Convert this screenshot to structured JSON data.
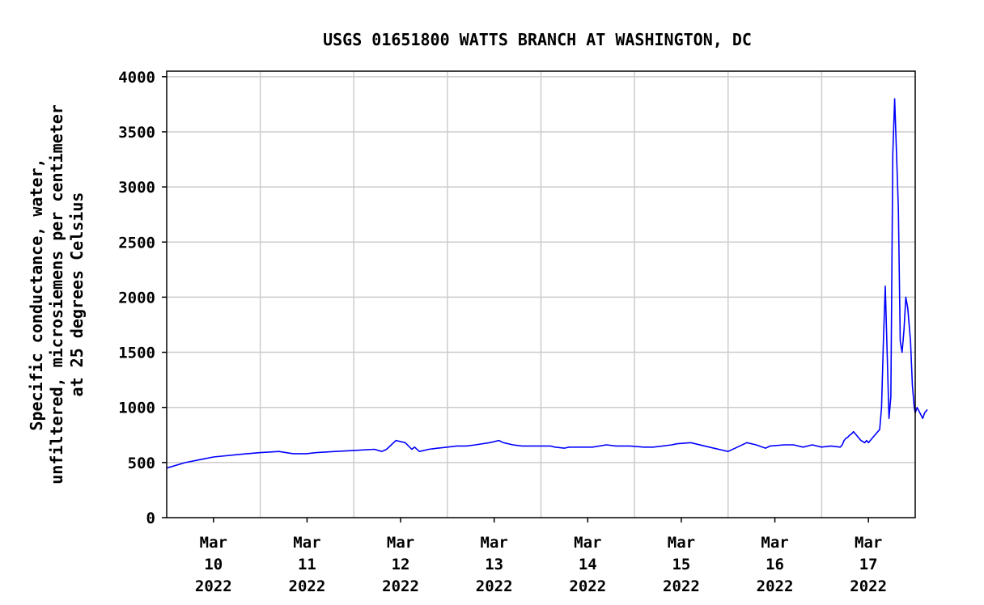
{
  "chart_data": {
    "type": "line",
    "title": "USGS 01651800 WATTS BRANCH AT WASHINGTON, DC",
    "ylabel_lines": [
      "Specific conductance, water,",
      "unfiltered, microsiemens per centimeter",
      "at 25 degrees Celsius"
    ],
    "ylim": [
      0,
      4050
    ],
    "yticks": [
      0,
      500,
      1000,
      1500,
      2000,
      2500,
      3000,
      3500,
      4000
    ],
    "xlim": [
      0,
      8
    ],
    "xtick_positions": [
      0.5,
      1.5,
      2.5,
      3.5,
      4.5,
      5.5,
      6.5,
      7.5
    ],
    "xtick_labels": [
      [
        "Mar",
        "10",
        "2022"
      ],
      [
        "Mar",
        "11",
        "2022"
      ],
      [
        "Mar",
        "12",
        "2022"
      ],
      [
        "Mar",
        "13",
        "2022"
      ],
      [
        "Mar",
        "14",
        "2022"
      ],
      [
        "Mar",
        "15",
        "2022"
      ],
      [
        "Mar",
        "16",
        "2022"
      ],
      [
        "Mar",
        "17",
        "2022"
      ]
    ],
    "grid": true,
    "series": [
      {
        "color": "#0000ff",
        "x": [
          0.0,
          0.2,
          0.5,
          0.8,
          1.0,
          1.2,
          1.35,
          1.5,
          1.6,
          1.8,
          2.0,
          2.22,
          2.3,
          2.35,
          2.45,
          2.55,
          2.62,
          2.65,
          2.7,
          2.8,
          2.9,
          3.0,
          3.1,
          3.2,
          3.3,
          3.45,
          3.55,
          3.6,
          3.7,
          3.8,
          3.95,
          4.1,
          4.15,
          4.25,
          4.3,
          4.35,
          4.4,
          4.55,
          4.7,
          4.8,
          4.95,
          5.1,
          5.2,
          5.4,
          5.45,
          5.6,
          5.8,
          6.0,
          6.2,
          6.3,
          6.4,
          6.45,
          6.6,
          6.7,
          6.8,
          6.9,
          7.0,
          7.1,
          7.2,
          7.22,
          7.24,
          7.26,
          7.28,
          7.3,
          7.32,
          7.34,
          7.36,
          7.38,
          7.4,
          7.42,
          7.44,
          7.46,
          7.48,
          7.5,
          7.52,
          7.54,
          7.56,
          7.58,
          7.6,
          7.62,
          7.64,
          7.66,
          7.68,
          7.7,
          7.72,
          7.74,
          7.76,
          7.78,
          7.8,
          7.82,
          7.84,
          7.86,
          7.88,
          7.9,
          7.92,
          7.95,
          7.97,
          7.99,
          8.0,
          8.02,
          8.05,
          8.08,
          8.1,
          8.13
        ],
        "values": [
          450,
          500,
          550,
          575,
          590,
          600,
          580,
          580,
          590,
          600,
          610,
          620,
          600,
          620,
          700,
          680,
          620,
          640,
          600,
          620,
          630,
          640,
          650,
          650,
          660,
          680,
          700,
          680,
          660,
          650,
          650,
          650,
          640,
          630,
          640,
          640,
          640,
          640,
          660,
          650,
          650,
          640,
          640,
          660,
          670,
          680,
          640,
          600,
          680,
          660,
          630,
          650,
          660,
          660,
          640,
          660,
          640,
          650,
          640,
          660,
          700,
          720,
          730,
          750,
          760,
          780,
          760,
          740,
          720,
          700,
          690,
          680,
          700,
          680,
          700,
          720,
          740,
          760,
          780,
          800,
          1000,
          1600,
          2100,
          1500,
          900,
          1100,
          3300,
          3800,
          3300,
          2800,
          1600,
          1500,
          1700,
          2000,
          1900,
          1600,
          1200,
          1000,
          950,
          1000,
          950,
          900,
          950,
          980
        ]
      }
    ]
  }
}
